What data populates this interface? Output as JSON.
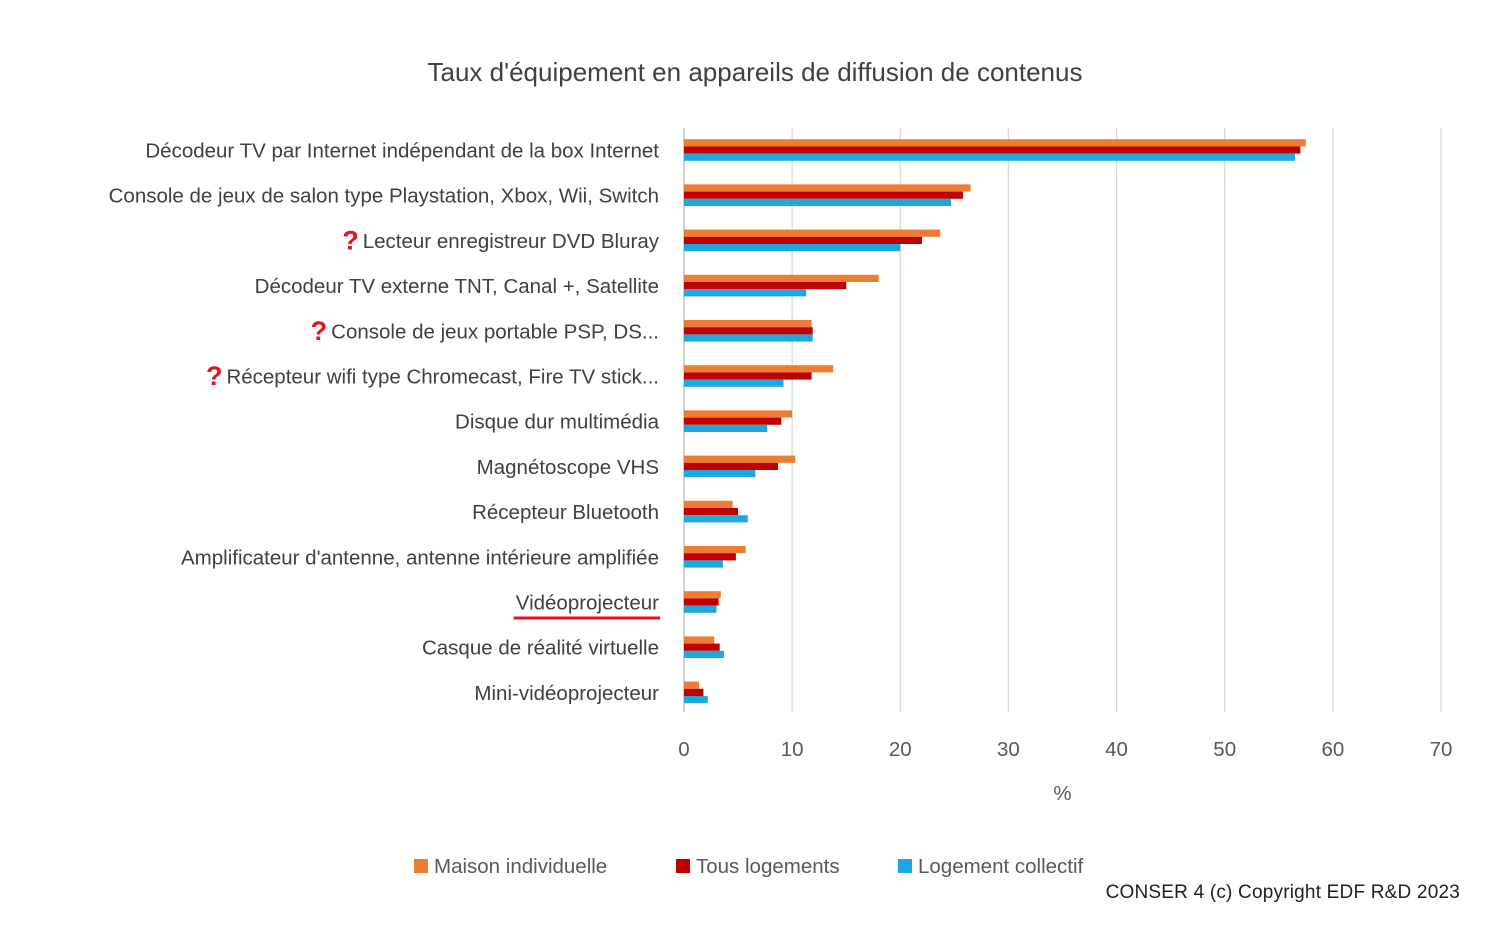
{
  "chart_data": {
    "type": "bar",
    "orientation": "horizontal",
    "title": "Taux d'équipement en appareils de diffusion de contenus",
    "xlabel": "%",
    "ylabel": "",
    "xlim": [
      0,
      70
    ],
    "xticks": [
      0,
      10,
      20,
      30,
      40,
      50,
      60,
      70
    ],
    "grid": true,
    "legend_position": "bottom",
    "categories": [
      "Décodeur TV par Internet indépendant de la box Internet",
      "Console de jeux de salon type Playstation, Xbox, Wii, Switch",
      "Lecteur enregistreur DVD Bluray",
      "Décodeur TV externe TNT, Canal +, Satellite",
      "Console de jeux portable PSP, DS...",
      "Récepteur wifi type Chromecast, Fire TV stick...",
      "Disque dur multimédia",
      "Magnétoscope VHS",
      "Récepteur Bluetooth",
      "Amplificateur d'antenne, antenne intérieure amplifiée",
      "Vidéoprojecteur",
      "Casque de réalité virtuelle",
      "Mini-vidéoprojecteur"
    ],
    "question_marked": [
      false,
      false,
      true,
      false,
      true,
      true,
      false,
      false,
      false,
      false,
      false,
      false,
      false
    ],
    "underlined": [
      false,
      false,
      false,
      false,
      false,
      false,
      false,
      false,
      false,
      false,
      true,
      false,
      false
    ],
    "annotation_mark": "?",
    "annotation_color": "#e8101a",
    "series": [
      {
        "name": "Maison individuelle",
        "color": "#ed7d31",
        "values": [
          57.5,
          26.5,
          23.7,
          18.0,
          11.8,
          13.8,
          10.0,
          10.3,
          4.5,
          5.7,
          3.4,
          2.8,
          1.4
        ]
      },
      {
        "name": "Tous logements",
        "color": "#c00000",
        "values": [
          57.0,
          25.8,
          22.0,
          15.0,
          11.9,
          11.8,
          9.0,
          8.7,
          5.0,
          4.8,
          3.2,
          3.3,
          1.8
        ]
      },
      {
        "name": "Logement collectif",
        "color": "#1ea8e0",
        "values": [
          56.5,
          24.7,
          20.0,
          11.3,
          11.9,
          9.2,
          7.7,
          6.6,
          5.9,
          3.6,
          3.0,
          3.7,
          2.2
        ]
      }
    ]
  },
  "footer": {
    "copyright": "CONSER 4 (c) Copyright EDF R&D 2023"
  }
}
